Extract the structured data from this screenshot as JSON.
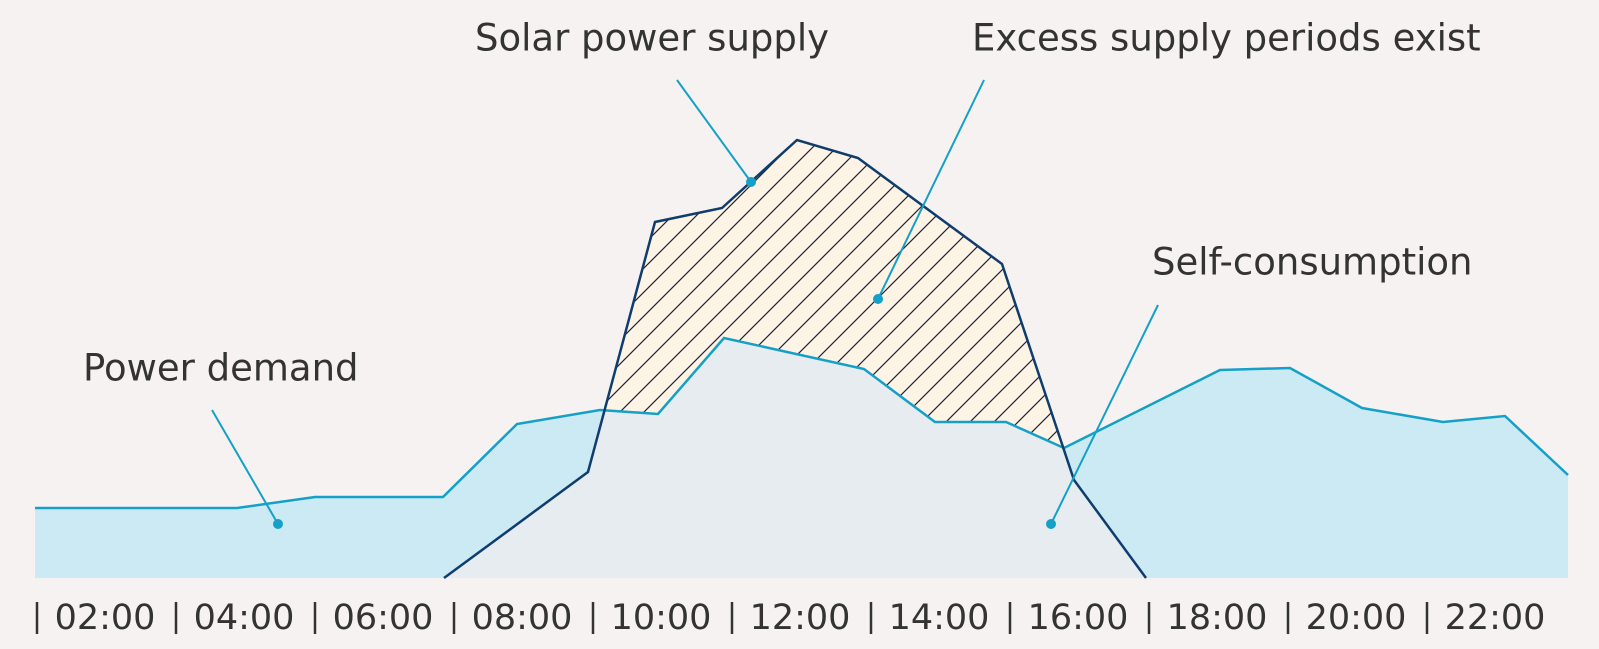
{
  "labels": {
    "solar": "Solar power supply",
    "excess": "Excess supply periods exist",
    "self": "Self-consumption",
    "demand": "Power demand"
  },
  "time_labels": [
    "02:00",
    "04:00",
    "06:00",
    "08:00",
    "10:00",
    "12:00",
    "14:00",
    "16:00",
    "18:00",
    "20:00",
    "22:00"
  ]
}
